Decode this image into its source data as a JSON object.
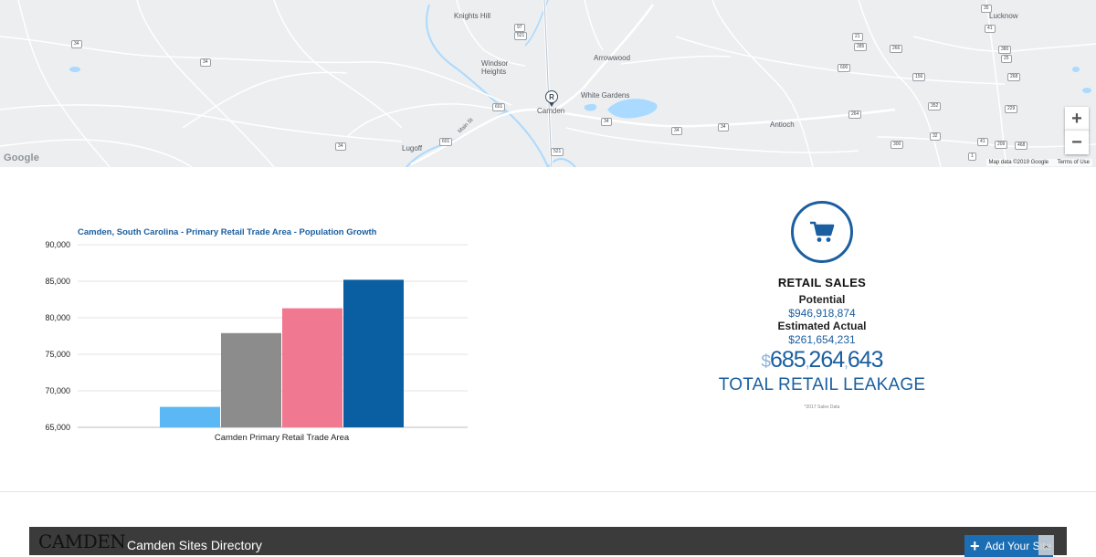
{
  "map": {
    "places": [
      {
        "id": "knights-hill",
        "label": "Knights Hill"
      },
      {
        "id": "windsor",
        "label": "Windsor"
      },
      {
        "id": "heights",
        "label": "Heights"
      },
      {
        "id": "arrowwood",
        "label": "Arrowwood"
      },
      {
        "id": "white-gardens",
        "label": "White Gardens"
      },
      {
        "id": "camden",
        "label": "Camden"
      },
      {
        "id": "antioch",
        "label": "Antioch"
      },
      {
        "id": "lugoff",
        "label": "Lugoff"
      },
      {
        "id": "lucknow",
        "label": "Lucknow"
      },
      {
        "id": "main-st",
        "label": "Main St"
      }
    ],
    "shields": [
      "34",
      "34",
      "34",
      "34",
      "34",
      "34",
      "601",
      "601",
      "521",
      "521",
      "97",
      "35",
      "41",
      "21",
      "285",
      "266",
      "380",
      "25",
      "600",
      "156",
      "268",
      "352",
      "229",
      "264",
      "32",
      "41",
      "209",
      "468",
      "300",
      "1"
    ],
    "pin_label": "R",
    "zoom_in": "+",
    "zoom_out": "−",
    "google_logo": "Google",
    "attribution": "Map data ©2019 Google",
    "terms": "Terms of Use"
  },
  "chart_data": {
    "type": "bar",
    "title": "Camden, South Carolina - Primary Retail Trade Area - Population Growth",
    "categories": [
      "Camden Primary Retail Trade Area"
    ],
    "series": [
      {
        "values": [
          67800
        ],
        "color": "#5bb8f5"
      },
      {
        "values": [
          77900
        ],
        "color": "#8c8c8c"
      },
      {
        "values": [
          81300
        ],
        "color": "#f07890"
      },
      {
        "values": [
          85200
        ],
        "color": "#0a5fa3"
      }
    ],
    "ylim": [
      65000,
      90000
    ],
    "yticks": [
      "65,000",
      "70,000",
      "75,000",
      "80,000",
      "85,000",
      "90,000"
    ],
    "xlabel": "",
    "ylabel": "",
    "grid": true
  },
  "retail": {
    "icon": "shopping-cart-icon",
    "title": "RETAIL SALES",
    "potential_label": "Potential",
    "potential_value": "$946,918,874",
    "actual_label": "Estimated Actual",
    "actual_value": "$261,654,231",
    "leakage_currency": "$",
    "leakage_parts": [
      "685",
      "264",
      "643"
    ],
    "leakage_label": "TOTAL RETAIL LEAKAGE",
    "note": "*2017 Sales Data"
  },
  "footer": {
    "logo": "CAMDEN",
    "title": "Camden Sites Directory",
    "add_site": "Add Your Site",
    "scroll_top": "⌃"
  },
  "colors": {
    "accent": "#1b5fa0",
    "footer_bg": "#3b3b3b",
    "button": "#1c6eb4"
  }
}
